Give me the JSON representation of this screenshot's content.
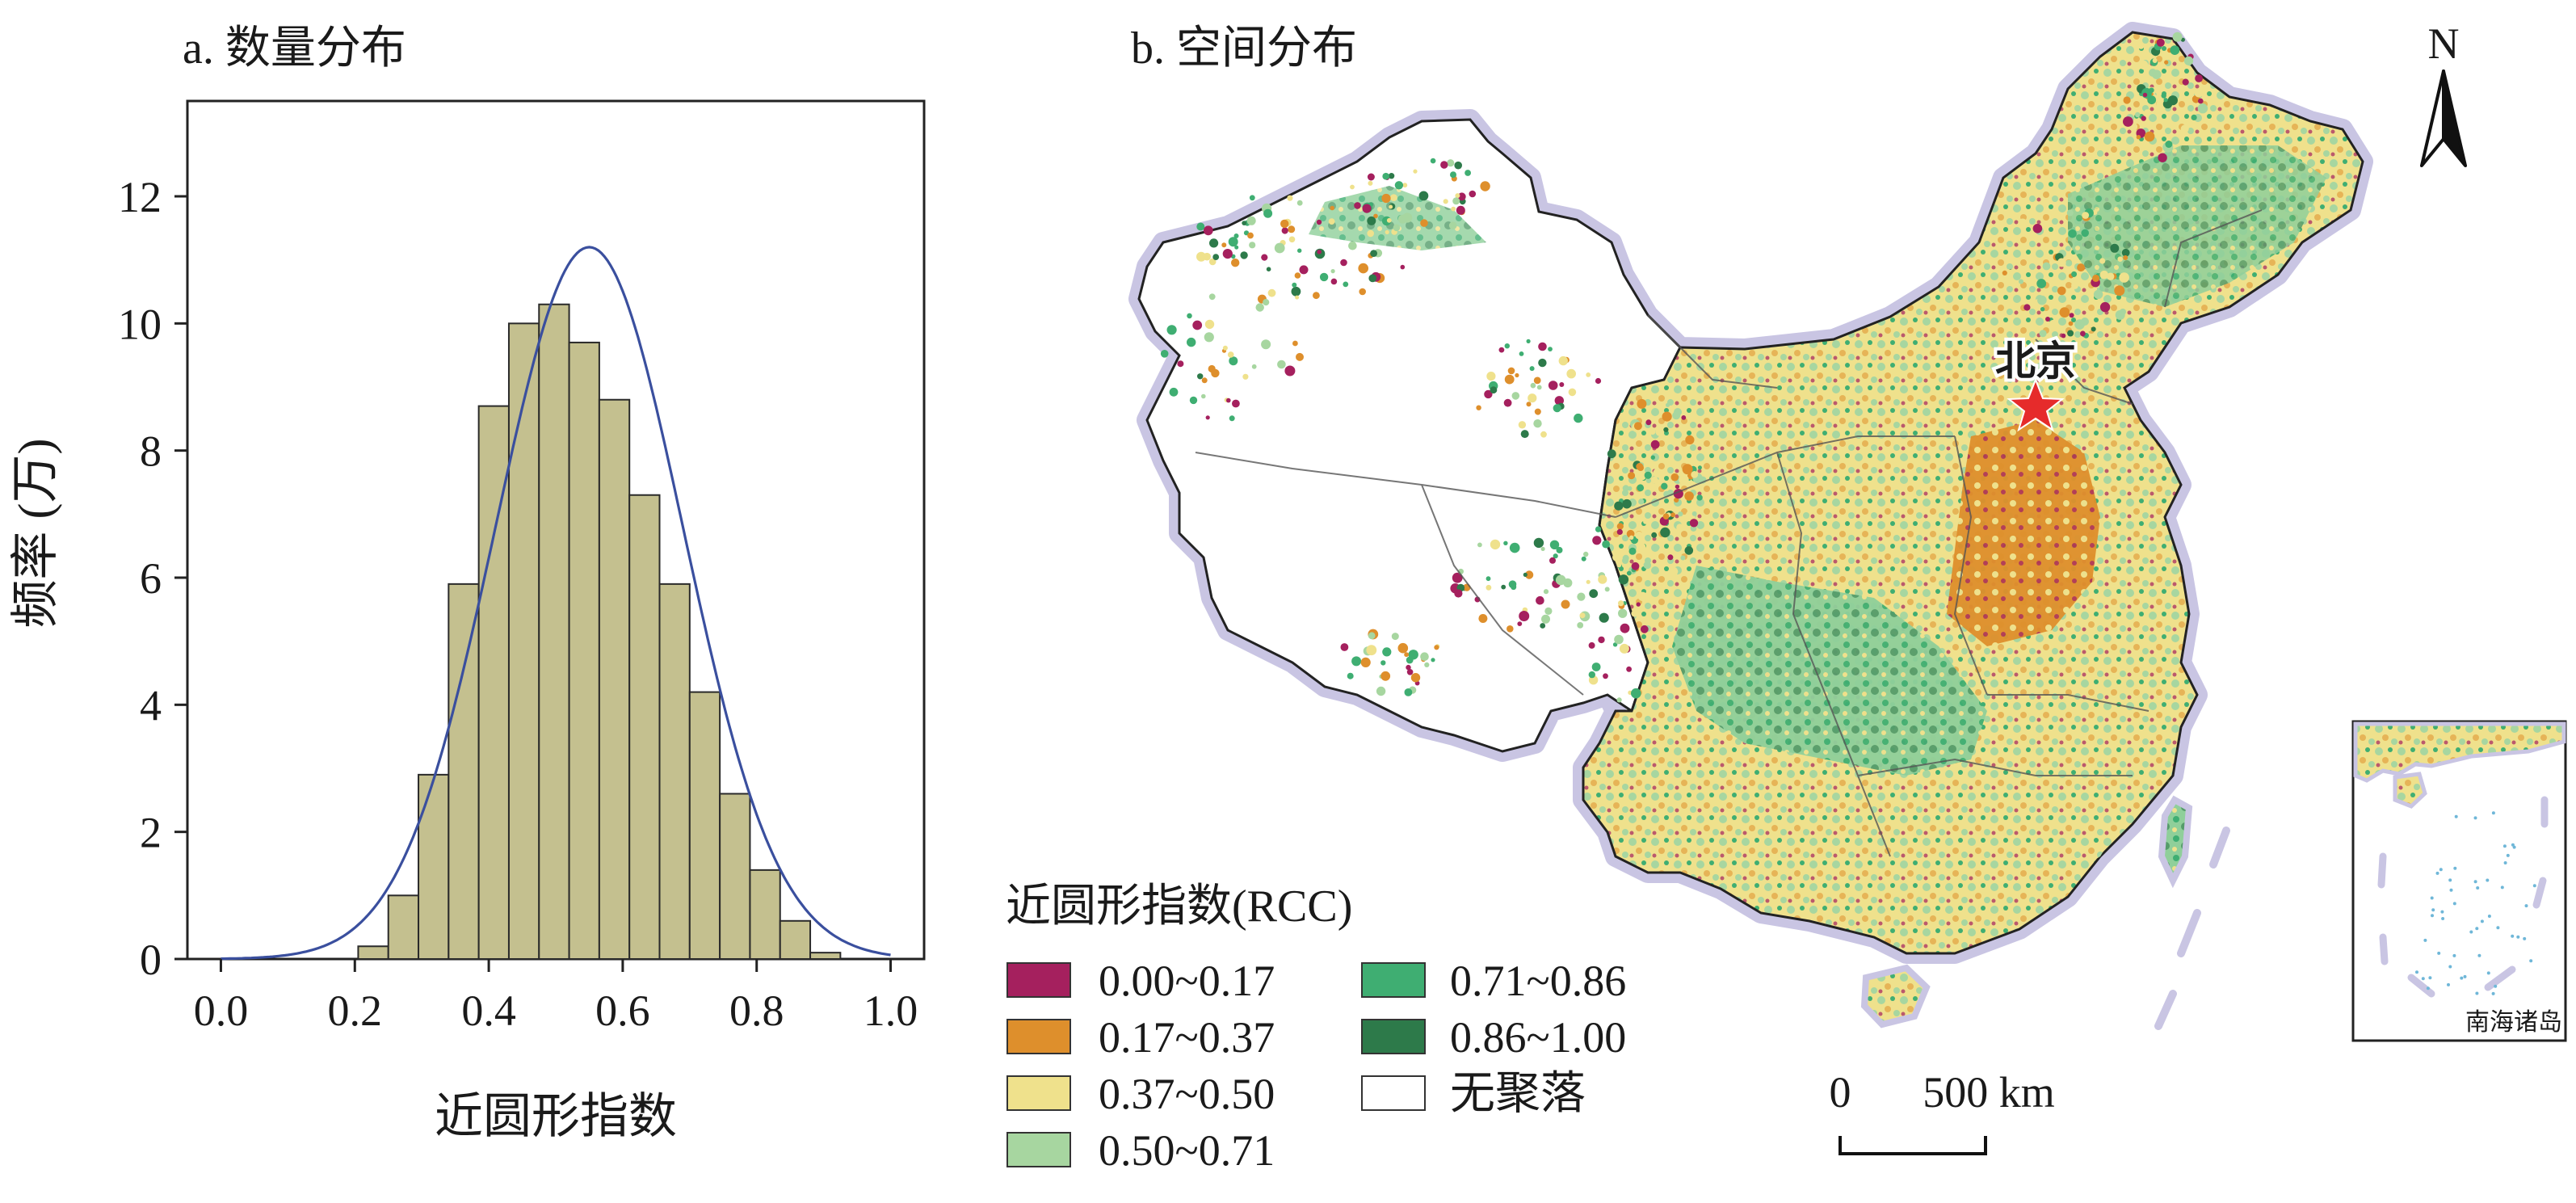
{
  "panel_a": {
    "title": "a. 数量分布",
    "chart_data": {
      "type": "bar",
      "subtype": "histogram_with_density_curve",
      "xlabel": "近圆形指数",
      "ylabel": "频率 (万)",
      "xlim": [
        -0.05,
        1.05
      ],
      "ylim": [
        0,
        13.5
      ],
      "xticks": [
        "0.0",
        "0.2",
        "0.4",
        "0.6",
        "0.8",
        "1.0"
      ],
      "yticks": [
        "0",
        "2",
        "4",
        "6",
        "8",
        "10",
        "12"
      ],
      "bin_width": 0.045,
      "bin_starts": [
        0.205,
        0.25,
        0.295,
        0.34,
        0.385,
        0.43,
        0.475,
        0.52,
        0.565,
        0.61,
        0.655,
        0.7,
        0.745,
        0.79,
        0.835,
        0.88
      ],
      "values": [
        0.2,
        1.0,
        2.9,
        5.9,
        8.7,
        10.0,
        10.3,
        9.7,
        8.8,
        7.3,
        5.9,
        4.2,
        2.6,
        1.4,
        0.6,
        0.1
      ],
      "density_curve": {
        "mean": 0.55,
        "sd": 0.14,
        "peak": 11.2
      },
      "bar_color": "#c4c08f",
      "curve_color": "#3a4f9e"
    }
  },
  "panel_b": {
    "title": "b. 空间分布",
    "legend": {
      "title": "近圆形指数(RCC)",
      "items": [
        {
          "label": "0.00~0.17",
          "color": "#a5205e"
        },
        {
          "label": "0.17~0.37",
          "color": "#de8f2c"
        },
        {
          "label": "0.37~0.50",
          "color": "#efe18c"
        },
        {
          "label": "0.50~0.71",
          "color": "#a7d6a0"
        },
        {
          "label": "0.71~0.86",
          "color": "#3fae72"
        },
        {
          "label": "0.86~1.00",
          "color": "#2d7a4a"
        },
        {
          "label": "无聚落",
          "color": "#ffffff"
        }
      ]
    },
    "capital_label": "北京",
    "north_label": "N",
    "scalebar": {
      "start": "0",
      "end": "500 km"
    },
    "inset_label": "南海诸岛",
    "border_color": "#c9c5e3"
  }
}
